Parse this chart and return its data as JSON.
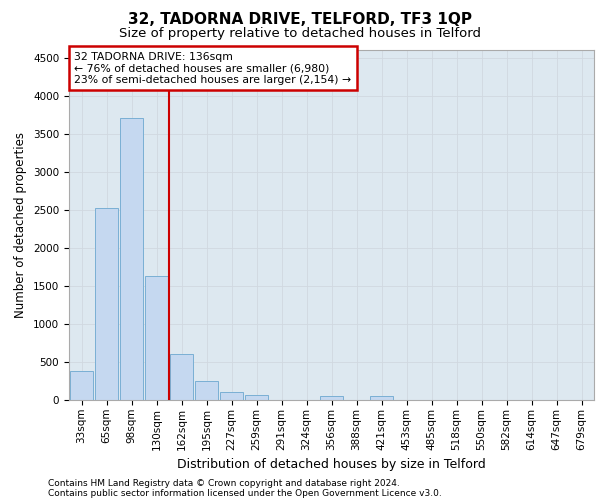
{
  "title_main": "32, TADORNA DRIVE, TELFORD, TF3 1QP",
  "title_sub": "Size of property relative to detached houses in Telford",
  "xlabel": "Distribution of detached houses by size in Telford",
  "ylabel": "Number of detached properties",
  "categories": [
    "33sqm",
    "65sqm",
    "98sqm",
    "130sqm",
    "162sqm",
    "195sqm",
    "227sqm",
    "259sqm",
    "291sqm",
    "324sqm",
    "356sqm",
    "388sqm",
    "421sqm",
    "453sqm",
    "485sqm",
    "518sqm",
    "550sqm",
    "582sqm",
    "614sqm",
    "647sqm",
    "679sqm"
  ],
  "values": [
    380,
    2520,
    3700,
    1630,
    600,
    245,
    100,
    65,
    0,
    0,
    55,
    0,
    55,
    0,
    0,
    0,
    0,
    0,
    0,
    0,
    0
  ],
  "bar_color": "#c5d8f0",
  "bar_edge_color": "#7aafd4",
  "vline_color": "#cc0000",
  "vline_xindex": 3,
  "annotation_line1": "32 TADORNA DRIVE: 136sqm",
  "annotation_line2": "← 76% of detached houses are smaller (6,980)",
  "annotation_line3": "23% of semi-detached houses are larger (2,154) →",
  "annotation_box_color": "#cc0000",
  "annotation_box_bg": "#ffffff",
  "ylim": [
    0,
    4600
  ],
  "yticks": [
    0,
    500,
    1000,
    1500,
    2000,
    2500,
    3000,
    3500,
    4000,
    4500
  ],
  "grid_color": "#d0d8e0",
  "bg_color": "#dde8f0",
  "footer1": "Contains HM Land Registry data © Crown copyright and database right 2024.",
  "footer2": "Contains public sector information licensed under the Open Government Licence v3.0.",
  "title_fontsize": 11,
  "subtitle_fontsize": 9.5,
  "xlabel_fontsize": 9,
  "ylabel_fontsize": 8.5,
  "tick_fontsize": 7.5,
  "footer_fontsize": 6.5
}
